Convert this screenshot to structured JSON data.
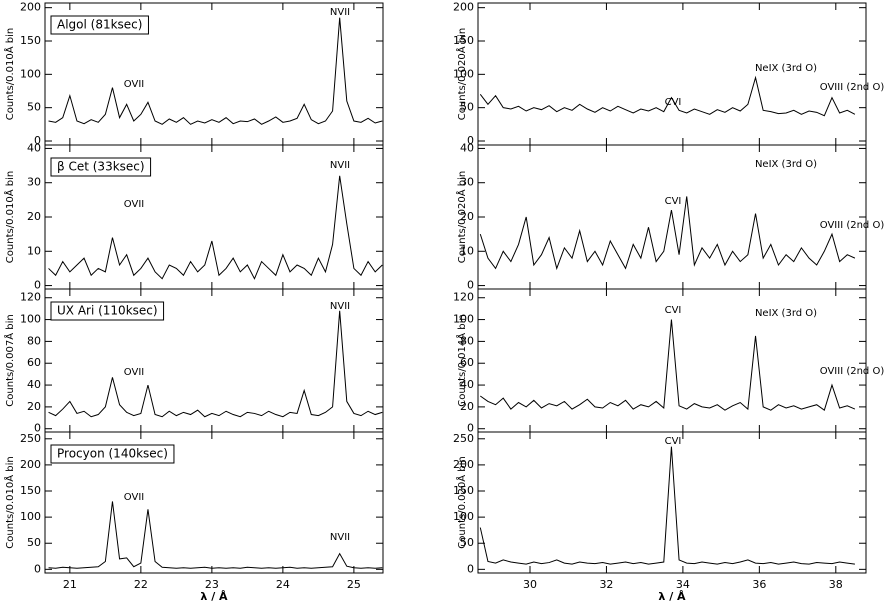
{
  "chart_data": [
    {
      "type": "line",
      "label": "Algol (81ksec)",
      "ylabel": "Counts/0.010Å bin",
      "annotations": [
        "OVII",
        "NVII"
      ],
      "color": "#000000",
      "xlim": [
        20.65,
        25.41
      ],
      "ylim": [
        -6,
        207
      ],
      "yticks": [
        0,
        50,
        100,
        150,
        200
      ],
      "x": [
        20.7,
        20.8,
        20.9,
        21.0,
        21.1,
        21.2,
        21.3,
        21.4,
        21.5,
        21.6,
        21.7,
        21.8,
        21.9,
        22.0,
        22.1,
        22.2,
        22.3,
        22.4,
        22.5,
        22.6,
        22.7,
        22.8,
        22.9,
        23.0,
        23.1,
        23.2,
        23.3,
        23.4,
        23.5,
        23.6,
        23.7,
        23.8,
        23.9,
        24.0,
        24.1,
        24.2,
        24.3,
        24.4,
        24.5,
        24.6,
        24.7,
        24.8,
        24.9,
        25.0,
        25.1,
        25.2,
        25.3,
        25.4
      ],
      "values": [
        30,
        28,
        35,
        68,
        30,
        26,
        32,
        28,
        40,
        80,
        35,
        55,
        30,
        40,
        58,
        30,
        25,
        33,
        28,
        35,
        25,
        30,
        27,
        32,
        28,
        35,
        26,
        30,
        29,
        33,
        25,
        30,
        36,
        28,
        30,
        34,
        55,
        32,
        26,
        30,
        45,
        185,
        60,
        30,
        28,
        34,
        27,
        30
      ]
    },
    {
      "type": "line",
      "label": "β Cet (33ksec)",
      "ylabel": "Counts/0.010Å bin",
      "annotations": [
        "OVII",
        "NVII"
      ],
      "color": "#000000",
      "xlim": [
        20.65,
        25.41
      ],
      "ylim": [
        -1,
        41
      ],
      "yticks": [
        0,
        10,
        20,
        30,
        40
      ],
      "x": [
        20.7,
        20.8,
        20.9,
        21.0,
        21.1,
        21.2,
        21.3,
        21.4,
        21.5,
        21.6,
        21.7,
        21.8,
        21.9,
        22.0,
        22.1,
        22.2,
        22.3,
        22.4,
        22.5,
        22.6,
        22.7,
        22.8,
        22.9,
        23.0,
        23.1,
        23.2,
        23.3,
        23.4,
        23.5,
        23.6,
        23.7,
        23.8,
        23.9,
        24.0,
        24.1,
        24.2,
        24.3,
        24.4,
        24.5,
        24.6,
        24.7,
        24.8,
        24.9,
        25.0,
        25.1,
        25.2,
        25.3,
        25.4
      ],
      "values": [
        5,
        3,
        7,
        4,
        6,
        8,
        3,
        5,
        4,
        14,
        6,
        9,
        3,
        5,
        8,
        4,
        2,
        6,
        5,
        3,
        7,
        4,
        6,
        13,
        3,
        5,
        8,
        4,
        6,
        2,
        7,
        5,
        3,
        9,
        4,
        6,
        5,
        3,
        8,
        4,
        12,
        32,
        18,
        5,
        3,
        7,
        4,
        6
      ]
    },
    {
      "type": "line",
      "label": "UX Ari (110ksec)",
      "ylabel": "Counts/0.007Å bin",
      "annotations": [
        "OVII",
        "NVII"
      ],
      "color": "#000000",
      "xlim": [
        20.65,
        25.41
      ],
      "ylim": [
        -3,
        128
      ],
      "yticks": [
        0,
        20,
        40,
        60,
        80,
        100,
        120
      ],
      "x": [
        20.7,
        20.8,
        20.9,
        21.0,
        21.1,
        21.2,
        21.3,
        21.4,
        21.5,
        21.6,
        21.7,
        21.8,
        21.9,
        22.0,
        22.1,
        22.2,
        22.3,
        22.4,
        22.5,
        22.6,
        22.7,
        22.8,
        22.9,
        23.0,
        23.1,
        23.2,
        23.3,
        23.4,
        23.5,
        23.6,
        23.7,
        23.8,
        23.9,
        24.0,
        24.1,
        24.2,
        24.3,
        24.4,
        24.5,
        24.6,
        24.7,
        24.8,
        24.9,
        25.0,
        25.1,
        25.2,
        25.3,
        25.4
      ],
      "values": [
        15,
        12,
        18,
        25,
        14,
        16,
        11,
        13,
        20,
        47,
        22,
        15,
        12,
        14,
        40,
        13,
        11,
        16,
        12,
        15,
        13,
        17,
        11,
        14,
        12,
        16,
        13,
        11,
        15,
        14,
        12,
        16,
        13,
        11,
        15,
        14,
        35,
        13,
        12,
        15,
        20,
        108,
        25,
        14,
        12,
        16,
        13,
        15
      ]
    },
    {
      "type": "line",
      "label": "Procyon (140ksec)",
      "ylabel": "Counts/0.010Å bin",
      "annotations": [
        "OVII",
        "NVII"
      ],
      "color": "#000000",
      "xlabel": "λ / Å",
      "xlim": [
        20.65,
        25.41
      ],
      "xticks": [
        21,
        22,
        23,
        24,
        25
      ],
      "ylim": [
        -7,
        263
      ],
      "yticks": [
        0,
        50,
        100,
        150,
        200,
        250
      ],
      "x": [
        20.7,
        20.8,
        20.9,
        21.0,
        21.1,
        21.2,
        21.3,
        21.4,
        21.5,
        21.6,
        21.7,
        21.8,
        21.9,
        22.0,
        22.1,
        22.2,
        22.3,
        22.4,
        22.5,
        22.6,
        22.7,
        22.8,
        22.9,
        23.0,
        23.1,
        23.2,
        23.3,
        23.4,
        23.5,
        23.6,
        23.7,
        23.8,
        23.9,
        24.0,
        24.1,
        24.2,
        24.3,
        24.4,
        24.5,
        24.6,
        24.7,
        24.8,
        24.9,
        25.0,
        25.1,
        25.2,
        25.3,
        25.4
      ],
      "values": [
        3,
        2,
        4,
        3,
        2,
        3,
        4,
        5,
        15,
        130,
        20,
        22,
        5,
        12,
        115,
        15,
        4,
        3,
        2,
        3,
        2,
        3,
        4,
        2,
        3,
        2,
        3,
        2,
        4,
        3,
        2,
        3,
        2,
        3,
        4,
        2,
        3,
        2,
        3,
        4,
        5,
        30,
        6,
        3,
        2,
        3,
        2,
        3
      ]
    },
    {
      "type": "line",
      "ylabel": "Counts/0.020Å bin",
      "annotations": [
        "CVI",
        "NeIX (3rd O)",
        "OVIII (2nd O)"
      ],
      "color": "#000000",
      "xlim": [
        28.64,
        38.79
      ],
      "ylim": [
        -6,
        207
      ],
      "yticks": [
        0,
        50,
        100,
        150,
        200
      ],
      "x": [
        28.7,
        28.9,
        29.1,
        29.3,
        29.5,
        29.7,
        29.9,
        30.1,
        30.3,
        30.5,
        30.7,
        30.9,
        31.1,
        31.3,
        31.5,
        31.7,
        31.9,
        32.1,
        32.3,
        32.5,
        32.7,
        32.9,
        33.1,
        33.3,
        33.5,
        33.7,
        33.9,
        34.1,
        34.3,
        34.5,
        34.7,
        34.9,
        35.1,
        35.3,
        35.5,
        35.7,
        35.9,
        36.1,
        36.3,
        36.5,
        36.7,
        36.9,
        37.1,
        37.3,
        37.5,
        37.7,
        37.9,
        38.1,
        38.3,
        38.5
      ],
      "values": [
        70,
        55,
        68,
        50,
        48,
        52,
        45,
        50,
        47,
        53,
        44,
        50,
        46,
        55,
        48,
        43,
        50,
        45,
        52,
        47,
        42,
        48,
        45,
        50,
        44,
        65,
        46,
        42,
        48,
        44,
        40,
        47,
        43,
        50,
        45,
        55,
        95,
        46,
        44,
        41,
        42,
        46,
        40,
        45,
        43,
        38,
        65,
        42,
        46,
        40
      ]
    },
    {
      "type": "line",
      "ylabel": "Counts/0.020Å bin",
      "annotations": [
        "CVI",
        "NeIX (3rd O)",
        "OVIII (2nd O)"
      ],
      "color": "#000000",
      "xlim": [
        28.64,
        38.79
      ],
      "ylim": [
        -1,
        41
      ],
      "yticks": [
        0,
        10,
        20,
        30,
        40
      ],
      "x": [
        28.7,
        28.9,
        29.1,
        29.3,
        29.5,
        29.7,
        29.9,
        30.1,
        30.3,
        30.5,
        30.7,
        30.9,
        31.1,
        31.3,
        31.5,
        31.7,
        31.9,
        32.1,
        32.3,
        32.5,
        32.7,
        32.9,
        33.1,
        33.3,
        33.5,
        33.7,
        33.9,
        34.1,
        34.3,
        34.5,
        34.7,
        34.9,
        35.1,
        35.3,
        35.5,
        35.7,
        35.9,
        36.1,
        36.3,
        36.5,
        36.7,
        36.9,
        37.1,
        37.3,
        37.5,
        37.7,
        37.9,
        38.1,
        38.3,
        38.5
      ],
      "values": [
        15,
        8,
        5,
        10,
        7,
        12,
        20,
        6,
        9,
        14,
        5,
        11,
        8,
        16,
        7,
        10,
        6,
        13,
        9,
        5,
        12,
        8,
        17,
        7,
        10,
        22,
        9,
        26,
        6,
        11,
        8,
        12,
        6,
        10,
        7,
        9,
        21,
        8,
        12,
        6,
        9,
        7,
        11,
        8,
        6,
        10,
        15,
        7,
        9,
        8
      ]
    },
    {
      "type": "line",
      "ylabel": "Counts/0.014Å bin",
      "annotations": [
        "CVI",
        "NeIX (3rd O)",
        "OVIII (2nd O)"
      ],
      "color": "#000000",
      "xlim": [
        28.64,
        38.79
      ],
      "ylim": [
        -3,
        128
      ],
      "yticks": [
        0,
        20,
        40,
        60,
        80,
        100,
        120
      ],
      "x": [
        28.7,
        28.9,
        29.1,
        29.3,
        29.5,
        29.7,
        29.9,
        30.1,
        30.3,
        30.5,
        30.7,
        30.9,
        31.1,
        31.3,
        31.5,
        31.7,
        31.9,
        32.1,
        32.3,
        32.5,
        32.7,
        32.9,
        33.1,
        33.3,
        33.5,
        33.7,
        33.9,
        34.1,
        34.3,
        34.5,
        34.7,
        34.9,
        35.1,
        35.3,
        35.5,
        35.7,
        35.9,
        36.1,
        36.3,
        36.5,
        36.7,
        36.9,
        37.1,
        37.3,
        37.5,
        37.7,
        37.9,
        38.1,
        38.3,
        38.5
      ],
      "values": [
        30,
        25,
        22,
        28,
        18,
        24,
        20,
        26,
        19,
        23,
        21,
        25,
        18,
        22,
        27,
        20,
        19,
        24,
        21,
        26,
        18,
        22,
        20,
        25,
        19,
        100,
        21,
        18,
        23,
        20,
        19,
        22,
        17,
        21,
        24,
        18,
        85,
        20,
        17,
        22,
        19,
        21,
        18,
        20,
        22,
        17,
        40,
        19,
        21,
        18
      ]
    },
    {
      "type": "line",
      "ylabel": "Counts/0.020Å bin",
      "annotations": [
        "CVI"
      ],
      "color": "#000000",
      "xlabel": "λ / Å",
      "xlim": [
        28.64,
        38.79
      ],
      "xticks": [
        30,
        32,
        34,
        36,
        38
      ],
      "ylim": [
        -7,
        263
      ],
      "yticks": [
        0,
        50,
        100,
        150,
        200,
        250
      ],
      "x": [
        28.7,
        28.9,
        29.1,
        29.3,
        29.5,
        29.7,
        29.9,
        30.1,
        30.3,
        30.5,
        30.7,
        30.9,
        31.1,
        31.3,
        31.5,
        31.7,
        31.9,
        32.1,
        32.3,
        32.5,
        32.7,
        32.9,
        33.1,
        33.3,
        33.5,
        33.7,
        33.9,
        34.1,
        34.3,
        34.5,
        34.7,
        34.9,
        35.1,
        35.3,
        35.5,
        35.7,
        35.9,
        36.1,
        36.3,
        36.5,
        36.7,
        36.9,
        37.1,
        37.3,
        37.5,
        37.7,
        37.9,
        38.1,
        38.3,
        38.5
      ],
      "values": [
        80,
        15,
        12,
        18,
        14,
        12,
        10,
        14,
        11,
        13,
        18,
        12,
        10,
        14,
        12,
        11,
        13,
        10,
        12,
        14,
        11,
        13,
        10,
        12,
        14,
        235,
        18,
        12,
        11,
        14,
        12,
        10,
        13,
        11,
        14,
        18,
        12,
        11,
        13,
        10,
        12,
        14,
        11,
        10,
        13,
        12,
        11,
        14,
        12,
        10
      ]
    }
  ]
}
